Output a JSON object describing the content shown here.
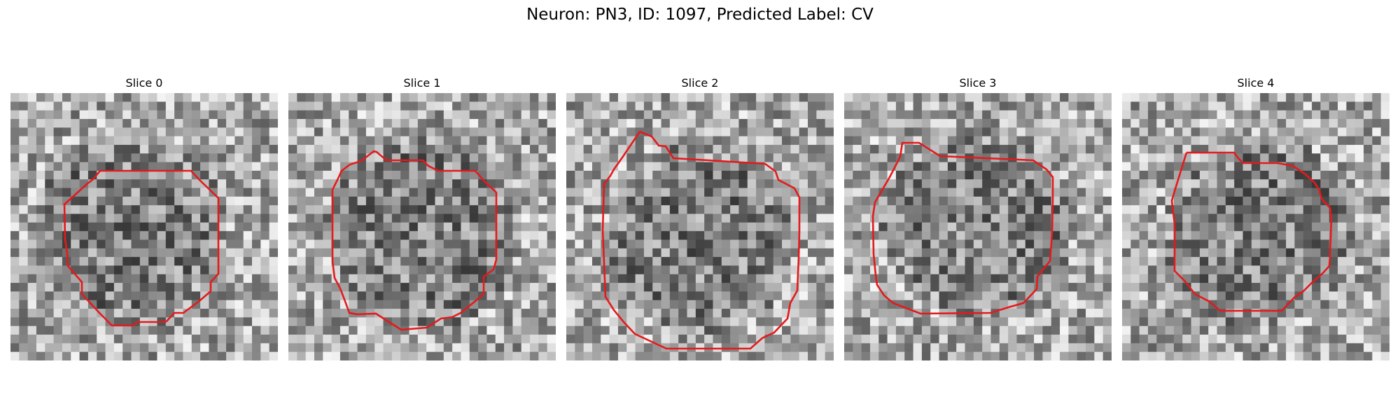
{
  "figure": {
    "title": "Neuron: PN3, ID: 1097, Predicted Label: CV"
  },
  "panels": [
    {
      "title": "Slice 0",
      "image": "grayscale microscopy slice",
      "outline_color": "#e41a1c"
    },
    {
      "title": "Slice 1",
      "image": "grayscale microscopy slice",
      "outline_color": "#e41a1c"
    },
    {
      "title": "Slice 2",
      "image": "grayscale microscopy slice",
      "outline_color": "#e41a1c"
    },
    {
      "title": "Slice 3",
      "image": "grayscale microscopy slice",
      "outline_color": "#e41a1c"
    },
    {
      "title": "Slice 4",
      "image": "grayscale microscopy slice",
      "outline_color": "#e41a1c"
    }
  ]
}
